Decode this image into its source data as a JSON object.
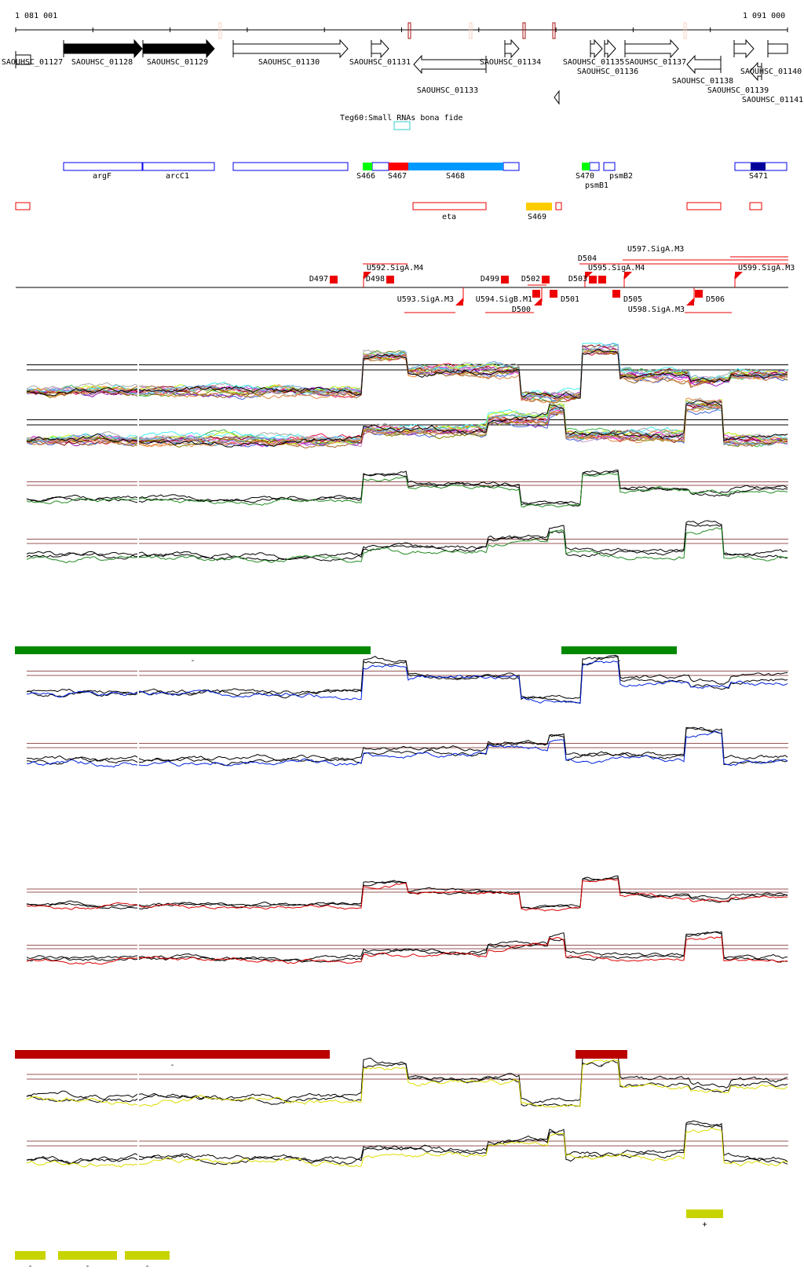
{
  "ruler": {
    "start_label": "1 081 001",
    "end_label": "1 091 000"
  },
  "genes": [
    {
      "label": "SAOUHSC_01127",
      "strand": "none",
      "style": "open"
    },
    {
      "label": "SAOUHSC_01128",
      "strand": "+",
      "style": "filled"
    },
    {
      "label": "SAOUHSC_01129",
      "strand": "+",
      "style": "filled"
    },
    {
      "label": "SAOUHSC_01130",
      "strand": "+",
      "style": "open"
    },
    {
      "label": "SAOUHSC_01131",
      "strand": "+",
      "style": "open"
    },
    {
      "label": "SAOUHSC_01133",
      "strand": "-",
      "style": "open"
    },
    {
      "label": "SAOUHSC_01134",
      "strand": "+",
      "style": "open"
    },
    {
      "label": "SAOUHSC_01135",
      "strand": "+",
      "style": "open"
    },
    {
      "label": "SAOUHSC_01136",
      "strand": "+",
      "style": "open"
    },
    {
      "label": "SAOUHSC_01137",
      "strand": "+",
      "style": "open"
    },
    {
      "label": "SAOUHSC_01138",
      "strand": "-",
      "style": "open"
    },
    {
      "label": "SAOUHSC_01139",
      "strand": "-",
      "style": "open"
    },
    {
      "label": "SAOUHSC_01140",
      "strand": "+",
      "style": "open"
    },
    {
      "label": "SAOUHSC_01141",
      "strand": "none",
      "style": "open"
    }
  ],
  "small_rna": {
    "label": "Teg60:Small RNAs bona fide",
    "color": "#33cccc"
  },
  "segments": [
    {
      "label": "argF"
    },
    {
      "label": "arcC1"
    },
    {
      "label": "S466",
      "color": "#00ff00"
    },
    {
      "label": "S467",
      "color": "#ff0000"
    },
    {
      "label": "S468",
      "color": "#0099ff"
    },
    {
      "label": "S470",
      "color": "#00ff00"
    },
    {
      "label": "psmB1"
    },
    {
      "label": "psmB2"
    },
    {
      "label": "S471",
      "color": "#000099"
    }
  ],
  "antisense": [
    {
      "label": "eta"
    },
    {
      "label": "S469",
      "color": "#ffcc00"
    }
  ],
  "promoters": [
    {
      "label": "D497"
    },
    {
      "label": "U592.SigA.M4"
    },
    {
      "label": "D498"
    },
    {
      "label": "U593.SigA.M3"
    },
    {
      "label": "D499"
    },
    {
      "label": "D502"
    },
    {
      "label": "U594.SigB.M1"
    },
    {
      "label": "D500"
    },
    {
      "label": "D501"
    },
    {
      "label": "U595.SigA.M4"
    },
    {
      "label": "D503"
    },
    {
      "label": "D504"
    },
    {
      "label": "U597.SigA.M3"
    },
    {
      "label": "D505"
    },
    {
      "label": "U598.SigA.M3"
    },
    {
      "label": "D506"
    },
    {
      "label": "U599.SigA.M3"
    }
  ],
  "condition_bars": {
    "green": {
      "color": "#008800",
      "labels": [
        "-",
        "-"
      ]
    },
    "red": {
      "color": "#bb0000",
      "labels": [
        "-",
        "-"
      ]
    },
    "yellow": {
      "color": "#c8d400",
      "labels": [
        "+",
        "-",
        "-",
        "-"
      ]
    }
  },
  "colors": {
    "green": "#228b22",
    "blue": "#0022dd",
    "red": "#dd0000",
    "yellow": "#dddd00",
    "threshold": "#995555"
  }
}
